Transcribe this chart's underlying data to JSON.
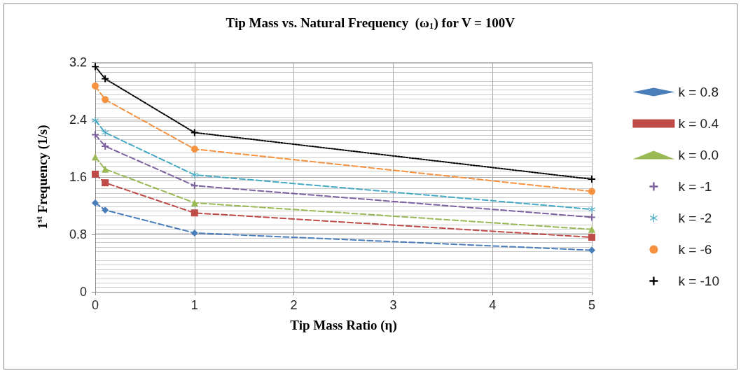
{
  "chart_data": {
    "type": "line",
    "title": "Tip Mass vs. Natural Frequency  (ω$_{1}$) for V = 100V",
    "xlabel": "Tip Mass Ratio (η)",
    "ylabel": "1$^{st}$ Frequency (1/s)",
    "x": [
      0,
      0.1,
      1,
      5
    ],
    "xlim": [
      0,
      5
    ],
    "xticks": [
      0,
      1,
      2,
      3,
      4,
      5
    ],
    "ylim": [
      0,
      3.2
    ],
    "yticks": [
      0,
      0.8,
      1.6,
      2.4,
      3.2
    ],
    "grid": true,
    "legend": "right",
    "line_style": "dashed",
    "series": [
      {
        "name": "k = 0.8",
        "color": "#4a7ebb",
        "marker": "diamond",
        "values": [
          1.24,
          1.14,
          0.82,
          0.58
        ]
      },
      {
        "name": "k = 0.4",
        "color": "#be4b48",
        "marker": "square",
        "values": [
          1.64,
          1.52,
          1.1,
          0.76
        ]
      },
      {
        "name": "k = 0.0",
        "color": "#98b954",
        "marker": "triangle",
        "values": [
          1.88,
          1.71,
          1.24,
          0.87
        ]
      },
      {
        "name": "k = -1",
        "color": "#7d60a0",
        "marker": "cross",
        "values": [
          2.19,
          2.03,
          1.48,
          1.04
        ]
      },
      {
        "name": "k = -2",
        "color": "#46aac5",
        "marker": "star",
        "values": [
          2.39,
          2.22,
          1.63,
          1.15
        ]
      },
      {
        "name": "k = -6",
        "color": "#f69240",
        "marker": "circle",
        "values": [
          2.87,
          2.68,
          1.99,
          1.4
        ]
      },
      {
        "name": "k = -10",
        "color": "#000000",
        "marker": "cross",
        "line_style": "dotted",
        "values": [
          3.14,
          2.97,
          2.22,
          1.57
        ]
      }
    ]
  }
}
